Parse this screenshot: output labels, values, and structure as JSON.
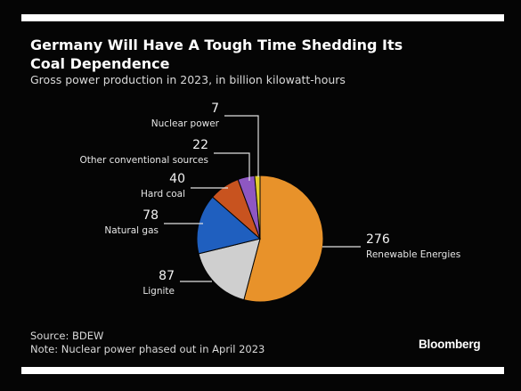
{
  "header": {
    "title": "Germany Will Have A Tough Time Shedding Its Coal Dependence",
    "subtitle": "Gross power production in 2023, in billion kilowatt-hours"
  },
  "footer": {
    "source": "Source: BDEW",
    "note": "Note: Nuclear power phased out in April 2023"
  },
  "brand": {
    "logo_text": "Bloomberg"
  },
  "chart_data": {
    "type": "pie",
    "title": "Germany Will Have A Tough Time Shedding Its Coal Dependence",
    "subtitle": "Gross power production in 2023, in billion kilowatt-hours",
    "unit": "billion kilowatt-hours",
    "start_angle_deg": 0,
    "direction": "clockwise",
    "slices": [
      {
        "label": "Renewable Energies",
        "value": 276,
        "color": "#e8922a"
      },
      {
        "label": "Lignite",
        "value": 87,
        "color": "#cfcfcf"
      },
      {
        "label": "Natural gas",
        "value": 78,
        "color": "#1f5fbf"
      },
      {
        "label": "Hard coal",
        "value": 40,
        "color": "#c8531f"
      },
      {
        "label": "Other conventional sources",
        "value": 22,
        "color": "#8e57c2"
      },
      {
        "label": "Nuclear power",
        "value": 7,
        "color": "#e3cf2a"
      }
    ],
    "legend": "none",
    "data_labels": "leader lines"
  }
}
